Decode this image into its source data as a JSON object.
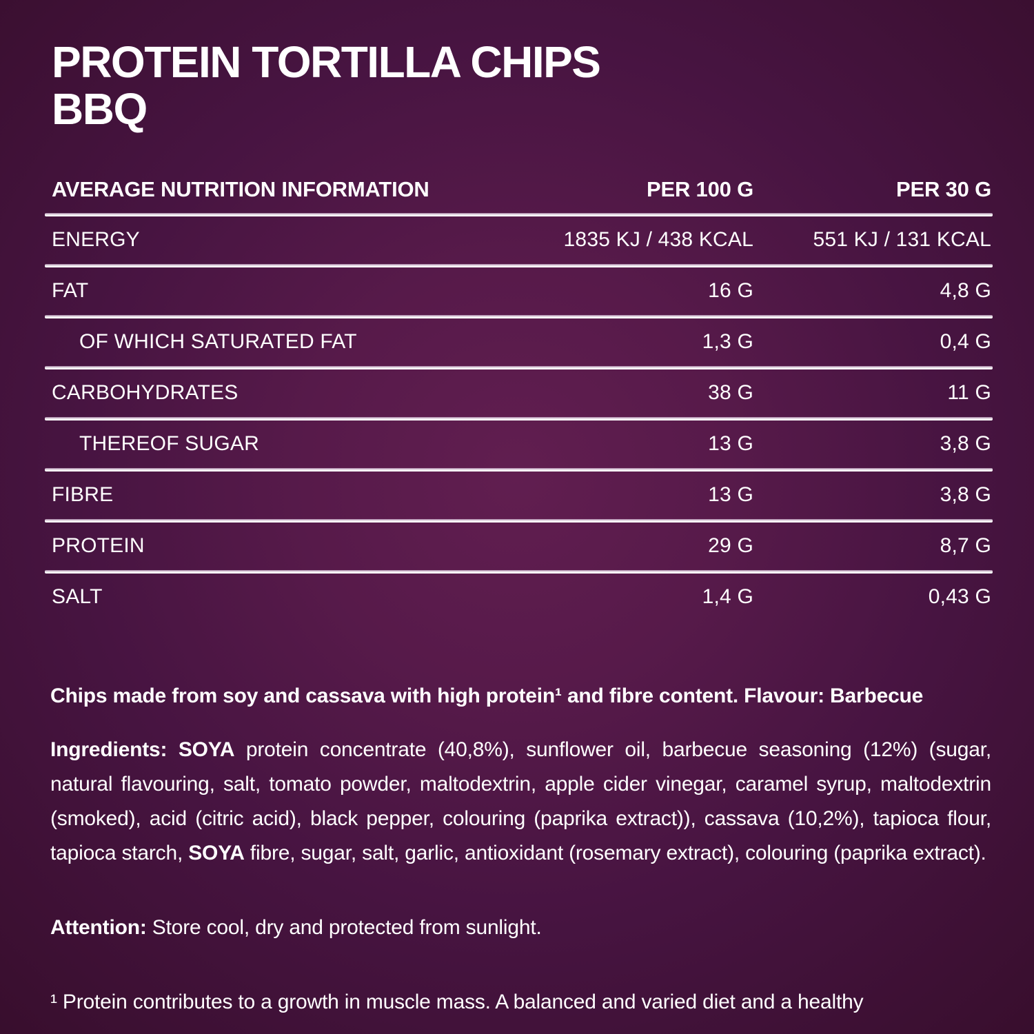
{
  "title": {
    "line1": "PROTEIN TORTILLA CHIPS",
    "line2": "BBQ"
  },
  "nutrition_table": {
    "headers": {
      "col1": "AVERAGE NUTRITION INFORMATION",
      "col2": "PER 100 G",
      "col3": "PER 30 G"
    },
    "rows": [
      {
        "label": "ENERGY",
        "per100": "1835 KJ / 438 KCAL",
        "per30": "551 KJ / 131 KCAL",
        "indent": false
      },
      {
        "label": "FAT",
        "per100": "16 G",
        "per30": "4,8 G",
        "indent": false
      },
      {
        "label": "OF WHICH SATURATED FAT",
        "per100": "1,3 G",
        "per30": "0,4 G",
        "indent": true
      },
      {
        "label": "CARBOHYDRATES",
        "per100": "38 G",
        "per30": "11 G",
        "indent": false
      },
      {
        "label": "THEREOF SUGAR",
        "per100": "13 G",
        "per30": "3,8 G",
        "indent": true
      },
      {
        "label": "FIBRE",
        "per100": "13 G",
        "per30": "3,8 G",
        "indent": false
      },
      {
        "label": "PROTEIN",
        "per100": "29 G",
        "per30": "8,7 G",
        "indent": false
      },
      {
        "label": "SALT",
        "per100": "1,4 G",
        "per30": "0,43 G",
        "indent": false
      }
    ]
  },
  "paragraphs": {
    "description": [
      {
        "text": "Chips made from soy and cassava with high protein¹ and fibre content. Flavour: Barbecue",
        "bold": true
      }
    ],
    "ingredients": [
      {
        "text": "Ingredients: ",
        "bold": true
      },
      {
        "text": " ",
        "bold": false
      },
      {
        "text": "SOYA",
        "bold": true
      },
      {
        "text": " protein concentrate (40,8%), sunflower oil, barbecue seasoning (12%) (sugar, natural flavouring, salt, tomato powder, maltodextrin, apple cider vinegar, caramel syrup, maltodextrin (smoked), acid (citric acid), black pepper, colouring (paprika extract)), cassava (10,2%), tapioca flour, tapioca starch, ",
        "bold": false
      },
      {
        "text": "SOYA",
        "bold": true
      },
      {
        "text": " fibre, sugar, salt, garlic, antioxidant (rosemary extract), colouring (paprika extract).",
        "bold": false
      }
    ],
    "attention": [
      {
        "text": "Attention: ",
        "bold": true
      },
      {
        "text": "Store cool, dry and protected from sunlight.",
        "bold": false
      }
    ],
    "footnote": [
      {
        "text": "¹ Protein contributes to a growth in muscle mass. A balanced and varied diet and a healthy",
        "bold": false
      }
    ]
  },
  "colors": {
    "background_center": "#611e50",
    "background_edge": "#380e2d",
    "text": "#ffffff",
    "divider": "#ffffff"
  }
}
